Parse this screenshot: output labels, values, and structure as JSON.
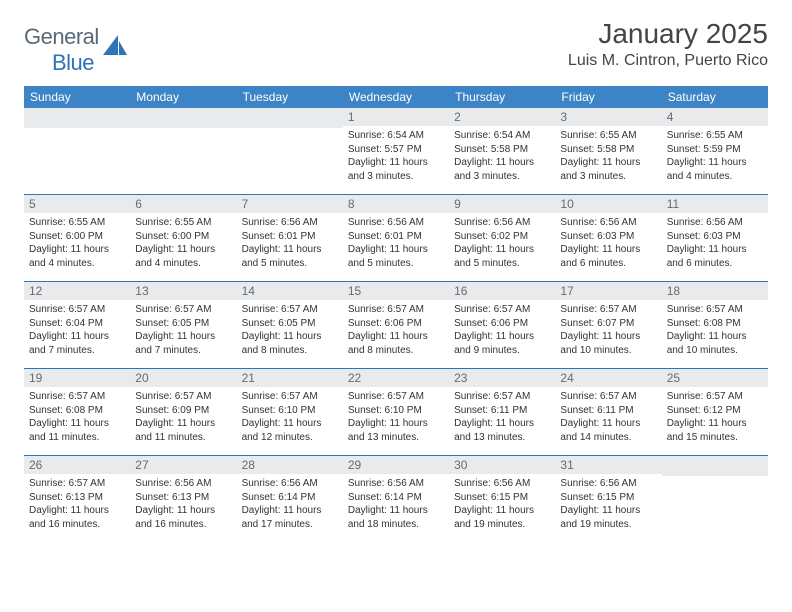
{
  "brand": {
    "g": "General",
    "b": "Blue"
  },
  "title": "January 2025",
  "subtitle": "Luis M. Cintron, Puerto Rico",
  "colors": {
    "header_bg": "#3c84c6",
    "header_text": "#ffffff",
    "rule": "#2f74b5",
    "daynum_bg": "#e9eaec",
    "daynum_text": "#666c72",
    "body_text": "#333333",
    "logo_gray": "#5a6a78",
    "logo_blue": "#2f74b5"
  },
  "dow": [
    "Sunday",
    "Monday",
    "Tuesday",
    "Wednesday",
    "Thursday",
    "Friday",
    "Saturday"
  ],
  "fonts": {
    "title": 28,
    "subtitle": 16,
    "dow": 12,
    "daynum": 12,
    "body": 10
  },
  "weeks": [
    [
      null,
      null,
      null,
      {
        "n": "1",
        "rise": "6:54 AM",
        "set": "5:57 PM",
        "dlh": "11",
        "dlm": "3"
      },
      {
        "n": "2",
        "rise": "6:54 AM",
        "set": "5:58 PM",
        "dlh": "11",
        "dlm": "3"
      },
      {
        "n": "3",
        "rise": "6:55 AM",
        "set": "5:58 PM",
        "dlh": "11",
        "dlm": "3"
      },
      {
        "n": "4",
        "rise": "6:55 AM",
        "set": "5:59 PM",
        "dlh": "11",
        "dlm": "4"
      }
    ],
    [
      {
        "n": "5",
        "rise": "6:55 AM",
        "set": "6:00 PM",
        "dlh": "11",
        "dlm": "4"
      },
      {
        "n": "6",
        "rise": "6:55 AM",
        "set": "6:00 PM",
        "dlh": "11",
        "dlm": "4"
      },
      {
        "n": "7",
        "rise": "6:56 AM",
        "set": "6:01 PM",
        "dlh": "11",
        "dlm": "5"
      },
      {
        "n": "8",
        "rise": "6:56 AM",
        "set": "6:01 PM",
        "dlh": "11",
        "dlm": "5"
      },
      {
        "n": "9",
        "rise": "6:56 AM",
        "set": "6:02 PM",
        "dlh": "11",
        "dlm": "5"
      },
      {
        "n": "10",
        "rise": "6:56 AM",
        "set": "6:03 PM",
        "dlh": "11",
        "dlm": "6"
      },
      {
        "n": "11",
        "rise": "6:56 AM",
        "set": "6:03 PM",
        "dlh": "11",
        "dlm": "6"
      }
    ],
    [
      {
        "n": "12",
        "rise": "6:57 AM",
        "set": "6:04 PM",
        "dlh": "11",
        "dlm": "7"
      },
      {
        "n": "13",
        "rise": "6:57 AM",
        "set": "6:05 PM",
        "dlh": "11",
        "dlm": "7"
      },
      {
        "n": "14",
        "rise": "6:57 AM",
        "set": "6:05 PM",
        "dlh": "11",
        "dlm": "8"
      },
      {
        "n": "15",
        "rise": "6:57 AM",
        "set": "6:06 PM",
        "dlh": "11",
        "dlm": "8"
      },
      {
        "n": "16",
        "rise": "6:57 AM",
        "set": "6:06 PM",
        "dlh": "11",
        "dlm": "9"
      },
      {
        "n": "17",
        "rise": "6:57 AM",
        "set": "6:07 PM",
        "dlh": "11",
        "dlm": "10"
      },
      {
        "n": "18",
        "rise": "6:57 AM",
        "set": "6:08 PM",
        "dlh": "11",
        "dlm": "10"
      }
    ],
    [
      {
        "n": "19",
        "rise": "6:57 AM",
        "set": "6:08 PM",
        "dlh": "11",
        "dlm": "11"
      },
      {
        "n": "20",
        "rise": "6:57 AM",
        "set": "6:09 PM",
        "dlh": "11",
        "dlm": "11"
      },
      {
        "n": "21",
        "rise": "6:57 AM",
        "set": "6:10 PM",
        "dlh": "11",
        "dlm": "12"
      },
      {
        "n": "22",
        "rise": "6:57 AM",
        "set": "6:10 PM",
        "dlh": "11",
        "dlm": "13"
      },
      {
        "n": "23",
        "rise": "6:57 AM",
        "set": "6:11 PM",
        "dlh": "11",
        "dlm": "13"
      },
      {
        "n": "24",
        "rise": "6:57 AM",
        "set": "6:11 PM",
        "dlh": "11",
        "dlm": "14"
      },
      {
        "n": "25",
        "rise": "6:57 AM",
        "set": "6:12 PM",
        "dlh": "11",
        "dlm": "15"
      }
    ],
    [
      {
        "n": "26",
        "rise": "6:57 AM",
        "set": "6:13 PM",
        "dlh": "11",
        "dlm": "16"
      },
      {
        "n": "27",
        "rise": "6:56 AM",
        "set": "6:13 PM",
        "dlh": "11",
        "dlm": "16"
      },
      {
        "n": "28",
        "rise": "6:56 AM",
        "set": "6:14 PM",
        "dlh": "11",
        "dlm": "17"
      },
      {
        "n": "29",
        "rise": "6:56 AM",
        "set": "6:14 PM",
        "dlh": "11",
        "dlm": "18"
      },
      {
        "n": "30",
        "rise": "6:56 AM",
        "set": "6:15 PM",
        "dlh": "11",
        "dlm": "19"
      },
      {
        "n": "31",
        "rise": "6:56 AM",
        "set": "6:15 PM",
        "dlh": "11",
        "dlm": "19"
      },
      null
    ]
  ]
}
